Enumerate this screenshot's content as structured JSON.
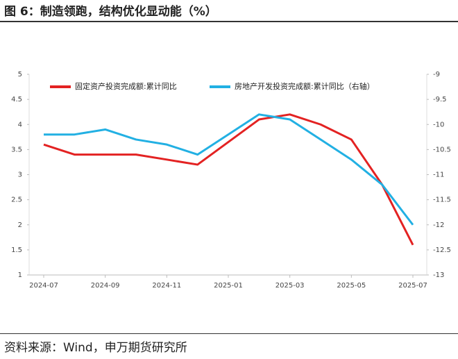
{
  "title": "图 6：制造领跑，结构优化显动能（%）",
  "source": "资料来源：Wind，申万期货研究所",
  "chart_data": {
    "type": "line",
    "x": [
      "2024-07",
      "2024-08",
      "2024-09",
      "2024-10",
      "2024-11",
      "2024-12",
      "2025-02",
      "2025-03",
      "2025-04",
      "2025-05",
      "2025-06",
      "2025-07"
    ],
    "xlim": [
      "2024-07",
      "2025-07"
    ],
    "xticks": [
      "2024-07",
      "2024-09",
      "2024-11",
      "2025-01",
      "2025-03",
      "2025-05",
      "2025-07"
    ],
    "series": [
      {
        "name": "固定资产投资完成额:累计同比",
        "color": "#e32222",
        "values": [
          3.6,
          3.4,
          3.4,
          3.4,
          3.3,
          3.2,
          4.1,
          4.2,
          4.0,
          3.7,
          2.8,
          1.6
        ]
      },
      {
        "name": "房地产开发投资完成额:累计同比（右轴）",
        "color": "#22b0e3",
        "axis": "y2",
        "values": [
          -10.2,
          -10.2,
          -10.1,
          -10.3,
          -10.4,
          -10.6,
          -9.8,
          -9.9,
          -10.3,
          -10.7,
          -11.2,
          -12.0
        ]
      }
    ],
    "ylim": [
      1,
      5
    ],
    "yticks": [
      1,
      1.5,
      2,
      2.5,
      3,
      3.5,
      4,
      4.5,
      5
    ],
    "y2lim": [
      -13,
      -9
    ],
    "y2ticks": [
      -13,
      -12.5,
      -12,
      -11.5,
      -11,
      -10.5,
      -10,
      -9.5,
      -9
    ],
    "legend": "top"
  }
}
